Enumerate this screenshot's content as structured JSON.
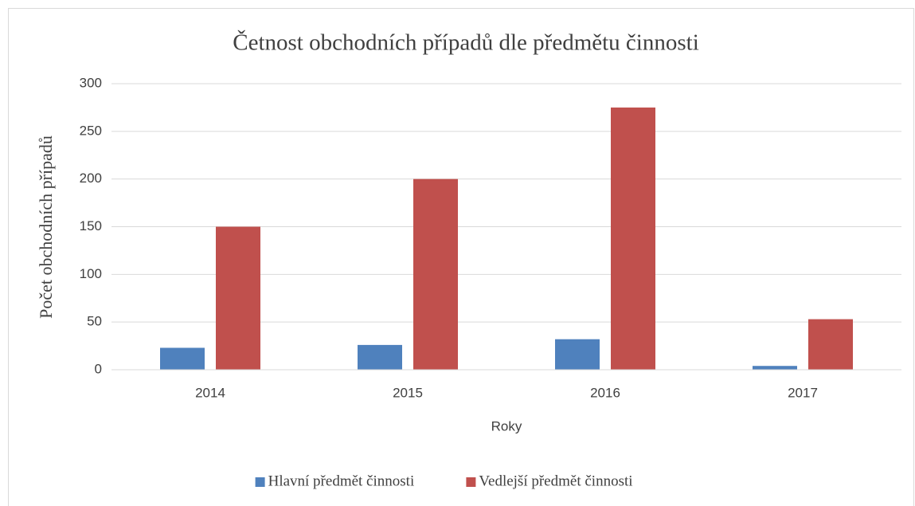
{
  "chart_data": {
    "type": "bar",
    "title": "Četnost obchodních případů dle předmětu činnosti",
    "x_label": "Roky",
    "y_label": "Počet obchodních případů",
    "categories": [
      "2014",
      "2015",
      "2016",
      "2017"
    ],
    "series": [
      {
        "name": "Hlavní předmět činnosti",
        "color": "#4f81bd",
        "values": [
          23,
          26,
          32,
          4
        ]
      },
      {
        "name": "Vedlejší předmět činnosti",
        "color": "#c0504d",
        "values": [
          150,
          200,
          275,
          53
        ]
      }
    ],
    "ylim": [
      0,
      300
    ],
    "yticks": [
      0,
      50,
      100,
      150,
      200,
      250,
      300
    ],
    "grid": true,
    "legend": "bottom"
  }
}
